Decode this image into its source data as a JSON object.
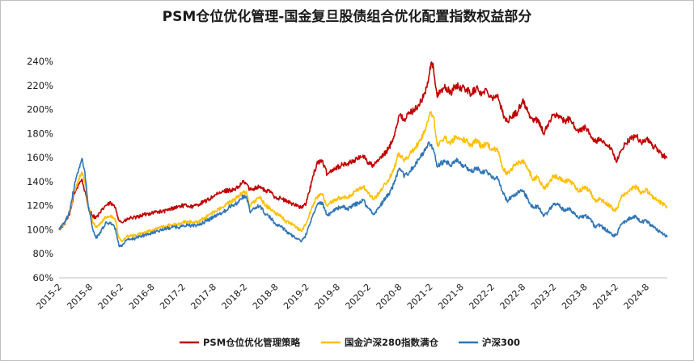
{
  "chart_data": {
    "type": "line",
    "title": "PSM仓位优化管理-国金复旦股债组合优化配置指数权益部分",
    "xlabel": "",
    "ylabel": "",
    "ylim": [
      0.6,
      2.4
    ],
    "y_ticks": [
      0.6,
      0.8,
      1.0,
      1.2,
      1.4,
      1.6,
      1.8,
      2.0,
      2.2,
      2.4
    ],
    "y_tick_labels": [
      "60%",
      "80%",
      "100%",
      "120%",
      "140%",
      "160%",
      "180%",
      "200%",
      "220%",
      "240%"
    ],
    "x_tick_labels": [
      "2015-2",
      "2015-8",
      "2016-2",
      "2016-8",
      "2017-2",
      "2017-8",
      "2018-2",
      "2018-8",
      "2019-2",
      "2019-8",
      "2020-2",
      "2020-8",
      "2021-2",
      "2021-8",
      "2022-2",
      "2022-8",
      "2023-2",
      "2023-8",
      "2024-2",
      "2024-8"
    ],
    "x_tick_positions": [
      2015.083,
      2015.583,
      2016.083,
      2016.583,
      2017.083,
      2017.583,
      2018.083,
      2018.583,
      2019.083,
      2019.583,
      2020.083,
      2020.583,
      2021.083,
      2021.583,
      2022.083,
      2022.583,
      2023.083,
      2023.583,
      2024.083,
      2024.583
    ],
    "xlim": [
      2015.083,
      2024.92
    ],
    "grid": false,
    "legend_position": "bottom-center",
    "series": [
      {
        "name": "PSM仓位优化管理策略",
        "color": "#c00000",
        "x": [
          2015.083,
          2015.17,
          2015.25,
          2015.33,
          2015.4,
          2015.45,
          2015.5,
          2015.55,
          2015.62,
          2015.68,
          2015.75,
          2015.83,
          2015.92,
          2016.0,
          2016.05,
          2016.1,
          2016.17,
          2016.25,
          2016.33,
          2016.42,
          2016.5,
          2016.58,
          2016.67,
          2016.75,
          2016.83,
          2016.92,
          2017.0,
          2017.08,
          2017.17,
          2017.25,
          2017.33,
          2017.42,
          2017.5,
          2017.58,
          2017.67,
          2017.75,
          2017.83,
          2017.92,
          2018.0,
          2018.06,
          2018.12,
          2018.17,
          2018.25,
          2018.33,
          2018.42,
          2018.5,
          2018.58,
          2018.67,
          2018.75,
          2018.83,
          2018.92,
          2019.0,
          2019.08,
          2019.17,
          2019.25,
          2019.33,
          2019.42,
          2019.5,
          2019.58,
          2019.67,
          2019.75,
          2019.83,
          2019.92,
          2020.0,
          2020.08,
          2020.17,
          2020.25,
          2020.33,
          2020.42,
          2020.5,
          2020.58,
          2020.67,
          2020.75,
          2020.83,
          2020.92,
          2021.0,
          2021.05,
          2021.1,
          2021.14,
          2021.2,
          2021.25,
          2021.33,
          2021.42,
          2021.5,
          2021.58,
          2021.67,
          2021.75,
          2021.83,
          2021.92,
          2022.0,
          2022.08,
          2022.17,
          2022.25,
          2022.33,
          2022.42,
          2022.5,
          2022.58,
          2022.67,
          2022.75,
          2022.83,
          2022.92,
          2023.0,
          2023.08,
          2023.17,
          2023.25,
          2023.33,
          2023.42,
          2023.5,
          2023.58,
          2023.67,
          2023.75,
          2023.83,
          2023.92,
          2024.0,
          2024.05,
          2024.1,
          2024.17,
          2024.25,
          2024.33,
          2024.42,
          2024.5,
          2024.58,
          2024.67,
          2024.75,
          2024.83,
          2024.92
        ],
        "values": [
          1.0,
          1.05,
          1.12,
          1.3,
          1.38,
          1.42,
          1.32,
          1.2,
          1.12,
          1.1,
          1.14,
          1.2,
          1.22,
          1.18,
          1.08,
          1.06,
          1.08,
          1.1,
          1.1,
          1.12,
          1.13,
          1.14,
          1.15,
          1.15,
          1.16,
          1.18,
          1.19,
          1.2,
          1.2,
          1.19,
          1.21,
          1.23,
          1.25,
          1.28,
          1.3,
          1.32,
          1.33,
          1.33,
          1.36,
          1.4,
          1.38,
          1.33,
          1.35,
          1.36,
          1.32,
          1.32,
          1.27,
          1.26,
          1.24,
          1.22,
          1.21,
          1.18,
          1.22,
          1.4,
          1.55,
          1.58,
          1.46,
          1.5,
          1.52,
          1.54,
          1.55,
          1.57,
          1.59,
          1.62,
          1.56,
          1.53,
          1.58,
          1.62,
          1.68,
          1.78,
          1.95,
          1.92,
          1.97,
          2.0,
          2.05,
          2.14,
          2.22,
          2.39,
          2.34,
          2.1,
          2.16,
          2.18,
          2.14,
          2.2,
          2.18,
          2.17,
          2.13,
          2.18,
          2.13,
          2.16,
          2.1,
          2.12,
          1.98,
          1.9,
          1.95,
          1.98,
          2.08,
          1.98,
          1.9,
          1.92,
          1.8,
          1.88,
          1.96,
          1.95,
          1.9,
          1.92,
          1.86,
          1.82,
          1.85,
          1.8,
          1.73,
          1.75,
          1.7,
          1.68,
          1.62,
          1.56,
          1.66,
          1.72,
          1.76,
          1.78,
          1.72,
          1.76,
          1.7,
          1.68,
          1.62,
          1.6
        ]
      },
      {
        "name": "国金沪深280指数满仓",
        "color": "#ffc000",
        "x": [
          2015.083,
          2015.17,
          2015.25,
          2015.33,
          2015.4,
          2015.45,
          2015.5,
          2015.55,
          2015.62,
          2015.68,
          2015.75,
          2015.83,
          2015.92,
          2016.0,
          2016.05,
          2016.1,
          2016.17,
          2016.25,
          2016.33,
          2016.42,
          2016.5,
          2016.58,
          2016.67,
          2016.75,
          2016.83,
          2016.92,
          2017.0,
          2017.08,
          2017.17,
          2017.25,
          2017.33,
          2017.42,
          2017.5,
          2017.58,
          2017.67,
          2017.75,
          2017.83,
          2017.92,
          2018.0,
          2018.06,
          2018.12,
          2018.17,
          2018.25,
          2018.33,
          2018.42,
          2018.5,
          2018.58,
          2018.67,
          2018.75,
          2018.83,
          2018.92,
          2019.0,
          2019.08,
          2019.17,
          2019.25,
          2019.33,
          2019.42,
          2019.5,
          2019.58,
          2019.67,
          2019.75,
          2019.83,
          2019.92,
          2020.0,
          2020.08,
          2020.17,
          2020.25,
          2020.33,
          2020.42,
          2020.5,
          2020.58,
          2020.67,
          2020.75,
          2020.83,
          2020.92,
          2021.0,
          2021.05,
          2021.1,
          2021.14,
          2021.2,
          2021.25,
          2021.33,
          2021.42,
          2021.5,
          2021.58,
          2021.67,
          2021.75,
          2021.83,
          2021.92,
          2022.0,
          2022.08,
          2022.17,
          2022.25,
          2022.33,
          2022.42,
          2022.5,
          2022.58,
          2022.67,
          2022.75,
          2022.83,
          2022.92,
          2023.0,
          2023.08,
          2023.17,
          2023.25,
          2023.33,
          2023.42,
          2023.5,
          2023.58,
          2023.67,
          2023.75,
          2023.83,
          2023.92,
          2024.0,
          2024.05,
          2024.1,
          2024.17,
          2024.25,
          2024.33,
          2024.42,
          2024.5,
          2024.58,
          2024.67,
          2024.75,
          2024.83,
          2024.92
        ],
        "values": [
          1.0,
          1.05,
          1.14,
          1.32,
          1.42,
          1.48,
          1.4,
          1.2,
          1.08,
          1.02,
          1.05,
          1.1,
          1.12,
          1.08,
          0.93,
          0.9,
          0.94,
          0.95,
          0.95,
          0.97,
          0.98,
          0.99,
          1.01,
          1.02,
          1.03,
          1.04,
          1.04,
          1.06,
          1.07,
          1.06,
          1.07,
          1.09,
          1.12,
          1.15,
          1.17,
          1.19,
          1.23,
          1.25,
          1.28,
          1.32,
          1.3,
          1.2,
          1.24,
          1.27,
          1.2,
          1.18,
          1.13,
          1.12,
          1.07,
          1.05,
          1.02,
          0.99,
          1.05,
          1.18,
          1.27,
          1.3,
          1.2,
          1.23,
          1.26,
          1.27,
          1.26,
          1.3,
          1.33,
          1.36,
          1.3,
          1.25,
          1.3,
          1.36,
          1.42,
          1.5,
          1.64,
          1.58,
          1.62,
          1.67,
          1.74,
          1.83,
          1.9,
          1.98,
          1.94,
          1.7,
          1.74,
          1.76,
          1.72,
          1.78,
          1.76,
          1.74,
          1.7,
          1.75,
          1.69,
          1.72,
          1.66,
          1.68,
          1.53,
          1.46,
          1.52,
          1.55,
          1.58,
          1.5,
          1.42,
          1.44,
          1.34,
          1.38,
          1.45,
          1.43,
          1.4,
          1.42,
          1.36,
          1.32,
          1.36,
          1.32,
          1.24,
          1.26,
          1.22,
          1.2,
          1.16,
          1.17,
          1.27,
          1.3,
          1.34,
          1.36,
          1.3,
          1.33,
          1.28,
          1.25,
          1.22,
          1.19
        ]
      },
      {
        "name": "沪深300",
        "color": "#2e75b6",
        "x": [
          2015.083,
          2015.17,
          2015.25,
          2015.33,
          2015.4,
          2015.45,
          2015.5,
          2015.55,
          2015.62,
          2015.68,
          2015.75,
          2015.83,
          2015.92,
          2016.0,
          2016.05,
          2016.1,
          2016.17,
          2016.25,
          2016.33,
          2016.42,
          2016.5,
          2016.58,
          2016.67,
          2016.75,
          2016.83,
          2016.92,
          2017.0,
          2017.08,
          2017.17,
          2017.25,
          2017.33,
          2017.42,
          2017.5,
          2017.58,
          2017.67,
          2017.75,
          2017.83,
          2017.92,
          2018.0,
          2018.06,
          2018.12,
          2018.17,
          2018.25,
          2018.33,
          2018.42,
          2018.5,
          2018.58,
          2018.67,
          2018.75,
          2018.83,
          2018.92,
          2019.0,
          2019.08,
          2019.17,
          2019.25,
          2019.33,
          2019.42,
          2019.5,
          2019.58,
          2019.67,
          2019.75,
          2019.83,
          2019.92,
          2020.0,
          2020.08,
          2020.17,
          2020.25,
          2020.33,
          2020.42,
          2020.5,
          2020.58,
          2020.67,
          2020.75,
          2020.83,
          2020.92,
          2021.0,
          2021.05,
          2021.1,
          2021.14,
          2021.2,
          2021.25,
          2021.33,
          2021.42,
          2021.5,
          2021.58,
          2021.67,
          2021.75,
          2021.83,
          2021.92,
          2022.0,
          2022.08,
          2022.17,
          2022.25,
          2022.33,
          2022.42,
          2022.5,
          2022.58,
          2022.67,
          2022.75,
          2022.83,
          2022.92,
          2023.0,
          2023.08,
          2023.17,
          2023.25,
          2023.33,
          2023.42,
          2023.5,
          2023.58,
          2023.67,
          2023.75,
          2023.83,
          2023.92,
          2024.0,
          2024.05,
          2024.1,
          2024.17,
          2024.25,
          2024.33,
          2024.42,
          2024.5,
          2024.58,
          2024.67,
          2024.75,
          2024.83,
          2024.92
        ],
        "values": [
          1.0,
          1.06,
          1.15,
          1.36,
          1.5,
          1.59,
          1.48,
          1.22,
          1.02,
          0.93,
          0.98,
          1.05,
          1.06,
          1.0,
          0.87,
          0.86,
          0.91,
          0.92,
          0.93,
          0.95,
          0.96,
          0.97,
          0.99,
          1.0,
          1.01,
          1.02,
          1.02,
          1.03,
          1.04,
          1.03,
          1.04,
          1.06,
          1.08,
          1.11,
          1.13,
          1.15,
          1.19,
          1.21,
          1.24,
          1.28,
          1.26,
          1.15,
          1.18,
          1.2,
          1.13,
          1.1,
          1.05,
          1.03,
          0.99,
          0.96,
          0.93,
          0.9,
          0.96,
          1.1,
          1.2,
          1.23,
          1.12,
          1.15,
          1.18,
          1.19,
          1.17,
          1.2,
          1.22,
          1.25,
          1.18,
          1.13,
          1.18,
          1.24,
          1.3,
          1.38,
          1.5,
          1.45,
          1.48,
          1.53,
          1.6,
          1.66,
          1.72,
          1.7,
          1.66,
          1.52,
          1.55,
          1.57,
          1.53,
          1.58,
          1.55,
          1.52,
          1.48,
          1.52,
          1.47,
          1.49,
          1.43,
          1.44,
          1.32,
          1.24,
          1.28,
          1.31,
          1.33,
          1.25,
          1.18,
          1.2,
          1.11,
          1.15,
          1.22,
          1.2,
          1.16,
          1.18,
          1.13,
          1.1,
          1.12,
          1.09,
          1.02,
          1.04,
          1.0,
          0.98,
          0.95,
          0.96,
          1.04,
          1.07,
          1.1,
          1.11,
          1.06,
          1.08,
          1.03,
          1.0,
          0.97,
          0.94
        ]
      }
    ]
  }
}
